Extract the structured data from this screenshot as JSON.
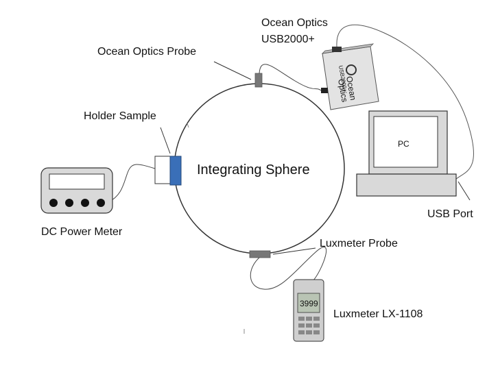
{
  "diagram": {
    "sphere_label": "Integrating Sphere",
    "labels": {
      "ocean_optics_device_line1": "Ocean Optics",
      "ocean_optics_device_line2": "USB2000+",
      "ocean_optics_probe": "Ocean Optics Probe",
      "holder_sample": "Holder Sample",
      "pc": "PC",
      "usb_port": "USB Port",
      "dc_power_meter": "DC Power Meter",
      "luxmeter_probe": "Luxmeter Probe",
      "luxmeter_device": "Luxmeter LX-1108"
    },
    "device_text": {
      "spectrometer_brand_line1": "Ocean",
      "spectrometer_brand_line2": "Optics",
      "spectrometer_model": "USB2000+",
      "luxmeter_display": "3999"
    },
    "colors": {
      "line": "#333333",
      "holder_blue": "#3a6fb8",
      "probe_gray": "#777777",
      "device_gray": "#d9d9d9"
    }
  }
}
